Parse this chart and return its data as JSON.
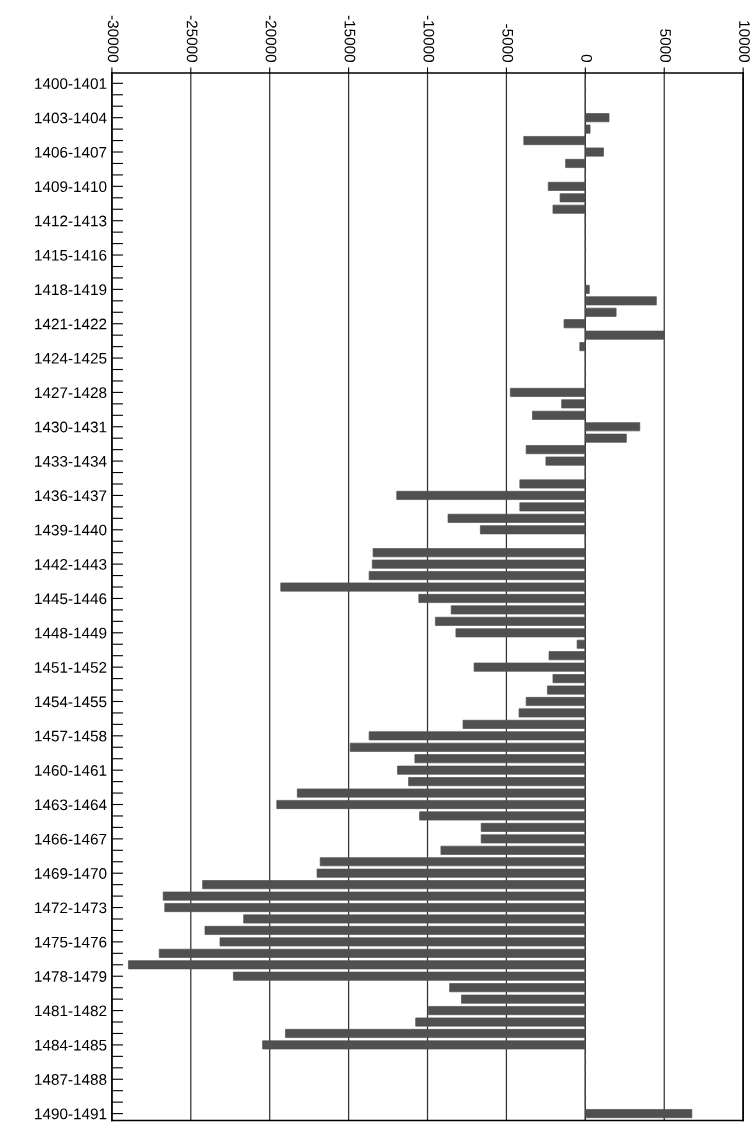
{
  "chart_data": {
    "type": "bar",
    "orientation": "horizontal",
    "categories": [
      "1400-1401",
      null,
      null,
      "1403-1404",
      null,
      null,
      "1406-1407",
      null,
      null,
      "1409-1410",
      null,
      null,
      "1412-1413",
      null,
      null,
      "1415-1416",
      null,
      null,
      "1418-1419",
      null,
      null,
      "1421-1422",
      null,
      null,
      "1424-1425",
      null,
      null,
      "1427-1428",
      null,
      null,
      "1430-1431",
      null,
      null,
      "1433-1434",
      null,
      null,
      "1436-1437",
      null,
      null,
      "1439-1440",
      null,
      null,
      "1442-1443",
      null,
      null,
      "1445-1446",
      null,
      null,
      "1448-1449",
      null,
      null,
      "1451-1452",
      null,
      null,
      "1454-1455",
      null,
      null,
      "1457-1458",
      null,
      null,
      "1460-1461",
      null,
      null,
      "1463-1464",
      null,
      null,
      "1466-1467",
      null,
      null,
      "1469-1470",
      null,
      null,
      "1472-1473",
      null,
      null,
      "1475-1476",
      null,
      null,
      "1478-1479",
      null,
      null,
      "1481-1482",
      null,
      null,
      "1484-1485",
      null,
      null,
      "1487-1488",
      null,
      null,
      "1490-1491"
    ],
    "values": [
      0,
      0,
      0,
      1500,
      300,
      -3900,
      1150,
      -1250,
      0,
      -2350,
      -1600,
      -2050,
      0,
      0,
      0,
      0,
      0,
      0,
      250,
      4500,
      1950,
      -1350,
      5000,
      -350,
      0,
      0,
      0,
      -4750,
      -1500,
      -3350,
      3450,
      2600,
      -3750,
      -2500,
      0,
      -4150,
      -11950,
      -4150,
      -8700,
      -6650,
      0,
      -13450,
      -13500,
      -13700,
      -19300,
      -10550,
      -8500,
      -9500,
      -8200,
      -520,
      -2300,
      -7050,
      -2050,
      -2400,
      -3750,
      -4200,
      -7750,
      -13700,
      -14900,
      -10800,
      -11900,
      -11200,
      -18250,
      -19550,
      -10500,
      -6600,
      -6600,
      -9150,
      -16800,
      -17000,
      -24250,
      -26750,
      -26650,
      -21650,
      -24100,
      -23150,
      -27000,
      -28950,
      -22300,
      -8600,
      -7850,
      -9950,
      -10750,
      -19000,
      -20450,
      0,
      0,
      0,
      0,
      0,
      6750
    ],
    "color": "#505050",
    "xlim": [
      -30000,
      10000
    ],
    "xticks": [
      -30000,
      -25000,
      -20000,
      -15000,
      -10000,
      -5000,
      0,
      5000,
      10000
    ],
    "grid": "x"
  }
}
